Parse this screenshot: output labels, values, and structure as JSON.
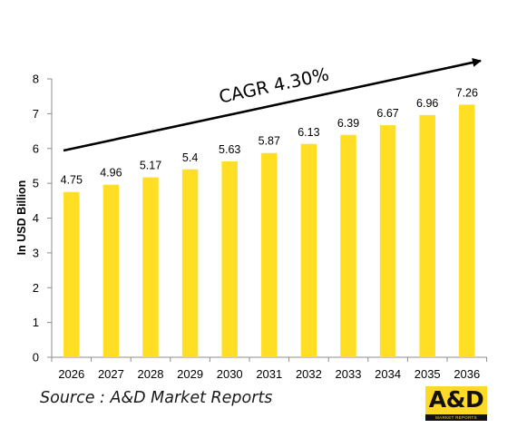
{
  "chart_data": {
    "type": "bar",
    "categories": [
      "2026",
      "2027",
      "2028",
      "2029",
      "2030",
      "2031",
      "2032",
      "2033",
      "2034",
      "2035",
      "2036"
    ],
    "values": [
      4.75,
      4.96,
      5.17,
      5.4,
      5.63,
      5.87,
      6.13,
      6.39,
      6.67,
      6.96,
      7.26
    ],
    "data_labels": [
      "4.75",
      "4.96",
      "5.17",
      "5.4",
      "5.63",
      "5.87",
      "6.13",
      "6.39",
      "6.67",
      "6.96",
      "7.26"
    ],
    "ylabel": "In USD Billion",
    "ylim": [
      0,
      8
    ],
    "yticks": [
      0,
      1,
      2,
      3,
      4,
      5,
      6,
      7,
      8
    ],
    "bar_color": "#ffde24",
    "grid": false,
    "annotation": "CAGR 4.30%"
  },
  "source": "Source : A&D Market Reports",
  "logo": {
    "text": "A&D",
    "subtext": "MARKET REPORTS"
  }
}
